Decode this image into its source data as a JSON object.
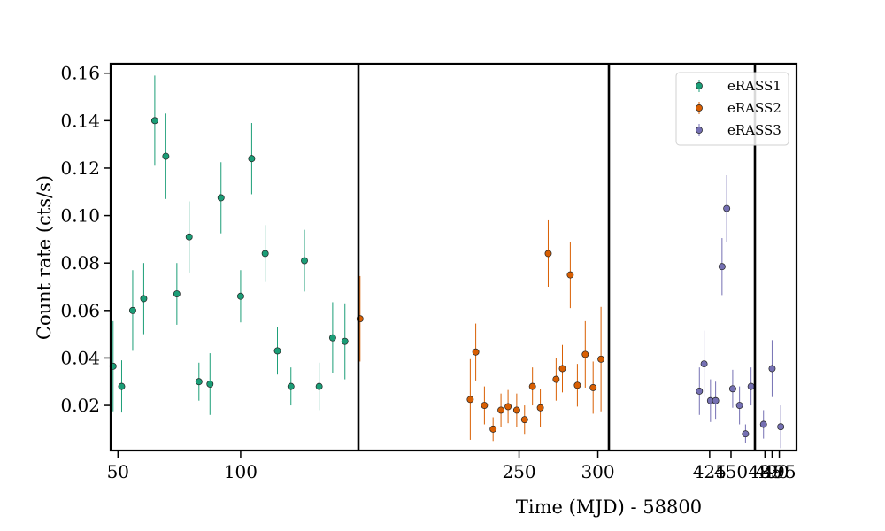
{
  "chart_data": {
    "type": "scatter",
    "xlabel": "Time (MJD) - 58800",
    "ylabel": "Count rate (cts/s)",
    "ylim": [
      0.001,
      0.164
    ],
    "y_ticks": [
      0.02,
      0.04,
      0.06,
      0.08,
      0.1,
      0.12,
      0.14,
      0.16
    ],
    "y_tick_labels": [
      "0.02",
      "0.04",
      "0.06",
      "0.08",
      "0.10",
      "0.12",
      "0.14",
      "0.16"
    ],
    "broken_x_axis": true,
    "panels": [
      {
        "xlim": [
          47,
          148
        ],
        "ticks": [
          50,
          100
        ],
        "tick_labels": [
          "50",
          "100"
        ]
      },
      {
        "xlim": [
          148,
          307
        ],
        "ticks": [
          250,
          300
        ],
        "tick_labels": [
          "250",
          "300"
        ]
      },
      {
        "xlim": [
          307,
          478
        ],
        "ticks": [
          425,
          450
        ],
        "tick_labels": [
          "425",
          "450"
        ]
      },
      {
        "xlim": [
          478,
          507
        ],
        "ticks": [
          485,
          490,
          495
        ],
        "tick_labels": [
          "485",
          "490",
          "495"
        ]
      }
    ],
    "legend": {
      "position": "top-right",
      "entries": [
        "eRASS1",
        "eRASS2",
        "eRASS3"
      ]
    },
    "grid": false,
    "series": [
      {
        "name": "eRASS1",
        "color": "#1b9e77",
        "points": [
          {
            "x": 48.0,
            "y": 0.0365,
            "err": 0.019
          },
          {
            "x": 51.5,
            "y": 0.028,
            "err": 0.011
          },
          {
            "x": 56.0,
            "y": 0.06,
            "err": 0.017
          },
          {
            "x": 60.5,
            "y": 0.065,
            "err": 0.015
          },
          {
            "x": 65.0,
            "y": 0.14,
            "err": 0.019
          },
          {
            "x": 69.5,
            "y": 0.125,
            "err": 0.018
          },
          {
            "x": 74.0,
            "y": 0.067,
            "err": 0.013
          },
          {
            "x": 79.0,
            "y": 0.091,
            "err": 0.015
          },
          {
            "x": 83.0,
            "y": 0.03,
            "err": 0.008
          },
          {
            "x": 87.5,
            "y": 0.029,
            "err": 0.013
          },
          {
            "x": 92.0,
            "y": 0.1075,
            "err": 0.015
          },
          {
            "x": 100.0,
            "y": 0.066,
            "err": 0.011
          },
          {
            "x": 104.5,
            "y": 0.124,
            "err": 0.015
          },
          {
            "x": 110.0,
            "y": 0.084,
            "err": 0.012
          },
          {
            "x": 115.0,
            "y": 0.043,
            "err": 0.01
          },
          {
            "x": 120.5,
            "y": 0.028,
            "err": 0.008
          },
          {
            "x": 126.0,
            "y": 0.081,
            "err": 0.013
          },
          {
            "x": 132.0,
            "y": 0.028,
            "err": 0.01
          },
          {
            "x": 137.5,
            "y": 0.0485,
            "err": 0.015
          },
          {
            "x": 142.5,
            "y": 0.047,
            "err": 0.016
          }
        ]
      },
      {
        "name": "eRASS2",
        "color": "#d95f02",
        "points": [
          {
            "x": 149.0,
            "y": 0.0565,
            "err": 0.018
          },
          {
            "x": 219.0,
            "y": 0.0225,
            "err": 0.017
          },
          {
            "x": 222.5,
            "y": 0.0425,
            "err": 0.012
          },
          {
            "x": 228.0,
            "y": 0.02,
            "err": 0.008
          },
          {
            "x": 233.5,
            "y": 0.01,
            "err": 0.005
          },
          {
            "x": 238.5,
            "y": 0.018,
            "err": 0.007
          },
          {
            "x": 243.0,
            "y": 0.0195,
            "err": 0.007
          },
          {
            "x": 248.5,
            "y": 0.018,
            "err": 0.007
          },
          {
            "x": 253.5,
            "y": 0.014,
            "err": 0.006
          },
          {
            "x": 258.5,
            "y": 0.028,
            "err": 0.008
          },
          {
            "x": 263.5,
            "y": 0.019,
            "err": 0.008
          },
          {
            "x": 268.5,
            "y": 0.084,
            "err": 0.014
          },
          {
            "x": 273.5,
            "y": 0.031,
            "err": 0.009
          },
          {
            "x": 277.5,
            "y": 0.0355,
            "err": 0.01
          },
          {
            "x": 282.5,
            "y": 0.075,
            "err": 0.014
          },
          {
            "x": 287.0,
            "y": 0.0285,
            "err": 0.009
          },
          {
            "x": 292.0,
            "y": 0.0415,
            "err": 0.014
          },
          {
            "x": 297.0,
            "y": 0.0275,
            "err": 0.011
          },
          {
            "x": 302.0,
            "y": 0.0395,
            "err": 0.022
          }
        ]
      },
      {
        "name": "eRASS3",
        "color": "#7570b3",
        "points": [
          {
            "x": 413.0,
            "y": 0.026,
            "err": 0.01
          },
          {
            "x": 418.5,
            "y": 0.0375,
            "err": 0.014
          },
          {
            "x": 426.0,
            "y": 0.022,
            "err": 0.009
          },
          {
            "x": 432.0,
            "y": 0.022,
            "err": 0.008
          },
          {
            "x": 439.5,
            "y": 0.0785,
            "err": 0.012
          },
          {
            "x": 445.0,
            "y": 0.103,
            "err": 0.014
          },
          {
            "x": 452.0,
            "y": 0.027,
            "err": 0.008
          },
          {
            "x": 460.0,
            "y": 0.02,
            "err": 0.008
          },
          {
            "x": 467.0,
            "y": 0.008,
            "err": 0.004
          },
          {
            "x": 473.5,
            "y": 0.028,
            "err": 0.008
          },
          {
            "x": 484.0,
            "y": 0.012,
            "err": 0.006
          },
          {
            "x": 490.0,
            "y": 0.0355,
            "err": 0.012
          },
          {
            "x": 496.0,
            "y": 0.011,
            "err": 0.009
          }
        ]
      }
    ]
  }
}
